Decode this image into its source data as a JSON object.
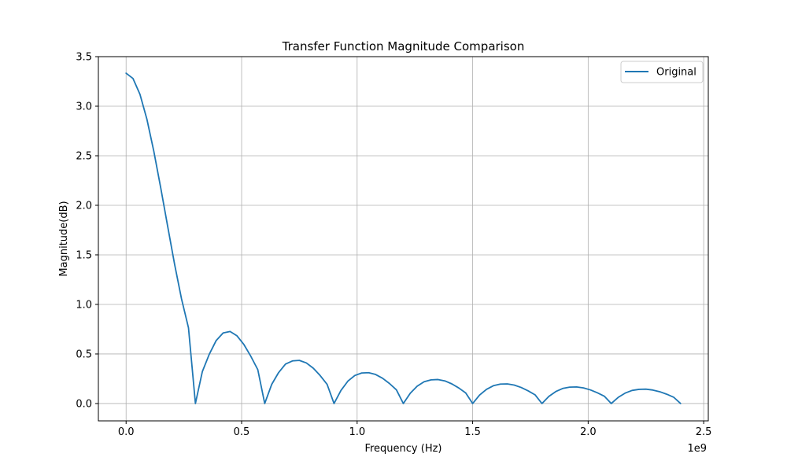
{
  "chart_data": {
    "type": "line",
    "title": "Transfer Function Magnitude Comparison",
    "xlabel": "Frequency (Hz)",
    "ylabel": "Magnitude(dB)",
    "x_offset_label": "1e9",
    "xlim": [
      -0.12,
      2.52
    ],
    "ylim": [
      -0.175,
      3.5
    ],
    "x_ticks": [
      0.0,
      0.5,
      1.0,
      1.5,
      2.0,
      2.5
    ],
    "x_tick_labels": [
      "0.0",
      "0.5",
      "1.0",
      "1.5",
      "2.0",
      "2.5"
    ],
    "y_ticks": [
      0.0,
      0.5,
      1.0,
      1.5,
      2.0,
      2.5,
      3.0,
      3.5
    ],
    "y_tick_labels": [
      "0.0",
      "0.5",
      "1.0",
      "1.5",
      "2.0",
      "2.5",
      "3.0",
      "3.5"
    ],
    "grid": true,
    "legend_position": "upper right",
    "series": [
      {
        "name": "Original",
        "color": "#1f77b4",
        "x": [
          0.0,
          0.03,
          0.06,
          0.09,
          0.12,
          0.15,
          0.18,
          0.21,
          0.24,
          0.27,
          0.3,
          0.33,
          0.36,
          0.39,
          0.42,
          0.45,
          0.48,
          0.51,
          0.54,
          0.57,
          0.6,
          0.63,
          0.66,
          0.69,
          0.72,
          0.75,
          0.78,
          0.81,
          0.84,
          0.87,
          0.9,
          0.93,
          0.96,
          0.99,
          1.02,
          1.05,
          1.08,
          1.11,
          1.14,
          1.17,
          1.2,
          1.23,
          1.26,
          1.29,
          1.32,
          1.35,
          1.38,
          1.41,
          1.44,
          1.47,
          1.5,
          1.53,
          1.56,
          1.59,
          1.62,
          1.65,
          1.68,
          1.71,
          1.74,
          1.77,
          1.8,
          1.83,
          1.86,
          1.89,
          1.92,
          1.95,
          1.98,
          2.01,
          2.04,
          2.07,
          2.1,
          2.13,
          2.16,
          2.19,
          2.22,
          2.25,
          2.28,
          2.31,
          2.34,
          2.37,
          2.4
        ],
        "y": [
          3.333,
          3.279,
          3.12,
          2.869,
          2.545,
          2.175,
          1.787,
          1.404,
          1.055,
          0.764,
          0.0,
          0.322,
          0.497,
          0.636,
          0.712,
          0.727,
          0.683,
          0.595,
          0.476,
          0.342,
          0.0,
          0.192,
          0.312,
          0.398,
          0.43,
          0.435,
          0.41,
          0.357,
          0.282,
          0.194,
          0.0,
          0.132,
          0.226,
          0.283,
          0.308,
          0.311,
          0.293,
          0.255,
          0.202,
          0.138,
          0.0,
          0.104,
          0.175,
          0.22,
          0.239,
          0.242,
          0.228,
          0.198,
          0.157,
          0.107,
          0.0,
          0.085,
          0.143,
          0.18,
          0.196,
          0.198,
          0.186,
          0.162,
          0.128,
          0.088,
          0.0,
          0.072,
          0.121,
          0.152,
          0.165,
          0.167,
          0.157,
          0.137,
          0.108,
          0.074,
          0.0,
          0.062,
          0.105,
          0.132,
          0.143,
          0.145,
          0.136,
          0.119,
          0.094,
          0.064,
          0.0
        ]
      }
    ]
  }
}
